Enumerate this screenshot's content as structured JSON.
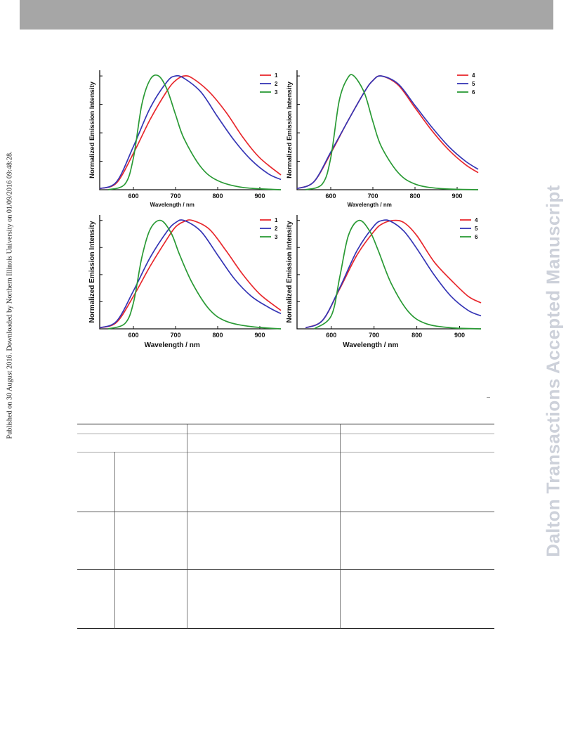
{
  "side_text": "Published on 30 August 2016. Downloaded by Northern Illinois University on 01/09/2016 09:48:28.",
  "watermark": "Dalton Transactions Accepted Manuscript",
  "chart_data": [
    {
      "type": "line",
      "ylabel": "Normalized Emission Intensity",
      "xlabel": "Wavelength / nm",
      "x_ticks": [
        600,
        700,
        800,
        900
      ],
      "xlim": [
        520,
        950
      ],
      "ylim": [
        0,
        1.05
      ],
      "legend_position": "top-right",
      "series": [
        {
          "name": "1",
          "color": "#e8282d",
          "x": [
            520,
            560,
            600,
            640,
            680,
            700,
            720,
            740,
            780,
            820,
            860,
            900,
            950
          ],
          "y": [
            0.01,
            0.06,
            0.32,
            0.62,
            0.87,
            0.96,
            1.0,
            0.98,
            0.86,
            0.68,
            0.46,
            0.28,
            0.13
          ]
        },
        {
          "name": "2",
          "color": "#3535b5",
          "x": [
            520,
            560,
            600,
            640,
            680,
            700,
            720,
            760,
            800,
            840,
            880,
            920,
            950
          ],
          "y": [
            0.01,
            0.07,
            0.38,
            0.72,
            0.95,
            1.0,
            0.98,
            0.86,
            0.64,
            0.43,
            0.26,
            0.14,
            0.09
          ]
        },
        {
          "name": "3",
          "color": "#2a9a35",
          "x": [
            540,
            580,
            600,
            620,
            640,
            660,
            680,
            700,
            720,
            760,
            800,
            860,
            950
          ],
          "y": [
            0.0,
            0.05,
            0.28,
            0.75,
            0.97,
            1.0,
            0.88,
            0.66,
            0.45,
            0.2,
            0.08,
            0.02,
            0.0
          ]
        }
      ]
    },
    {
      "type": "line",
      "ylabel": "Normalized Emission Intensity",
      "xlabel": "Wavelength / nm",
      "x_ticks": [
        600,
        700,
        800,
        900
      ],
      "xlim": [
        520,
        950
      ],
      "ylim": [
        0,
        1.05
      ],
      "legend_position": "top-right",
      "series": [
        {
          "name": "4",
          "color": "#e8282d",
          "x": [
            520,
            560,
            600,
            640,
            680,
            700,
            720,
            760,
            800,
            840,
            880,
            920,
            950
          ],
          "y": [
            0.01,
            0.07,
            0.32,
            0.6,
            0.86,
            0.96,
            1.0,
            0.92,
            0.72,
            0.52,
            0.35,
            0.22,
            0.15
          ]
        },
        {
          "name": "5",
          "color": "#3535b5",
          "x": [
            520,
            560,
            600,
            640,
            680,
            700,
            720,
            760,
            800,
            840,
            880,
            920,
            950
          ],
          "y": [
            0.01,
            0.07,
            0.33,
            0.6,
            0.86,
            0.96,
            1.0,
            0.93,
            0.74,
            0.55,
            0.38,
            0.25,
            0.18
          ]
        },
        {
          "name": "6",
          "color": "#2a9a35",
          "x": [
            540,
            580,
            600,
            620,
            640,
            655,
            680,
            700,
            720,
            760,
            800,
            860,
            950
          ],
          "y": [
            0.0,
            0.05,
            0.28,
            0.78,
            0.98,
            1.0,
            0.85,
            0.6,
            0.38,
            0.15,
            0.05,
            0.01,
            0.0
          ]
        }
      ]
    },
    {
      "type": "line",
      "ylabel": "Normalized Emission Intensity",
      "xlabel": "Wavelength / nm",
      "x_ticks": [
        600,
        700,
        800,
        900
      ],
      "xlim": [
        520,
        950
      ],
      "ylim": [
        0,
        1.05
      ],
      "legend_position": "top-right",
      "series": [
        {
          "name": "1",
          "color": "#e8282d",
          "x": [
            520,
            560,
            600,
            640,
            680,
            700,
            720,
            740,
            780,
            820,
            860,
            900,
            950
          ],
          "y": [
            0.01,
            0.06,
            0.3,
            0.58,
            0.83,
            0.94,
            0.99,
            1.0,
            0.92,
            0.72,
            0.5,
            0.32,
            0.17
          ]
        },
        {
          "name": "2",
          "color": "#3535b5",
          "x": [
            520,
            560,
            600,
            640,
            680,
            700,
            720,
            760,
            800,
            840,
            880,
            920,
            950
          ],
          "y": [
            0.01,
            0.07,
            0.35,
            0.66,
            0.9,
            0.98,
            1.0,
            0.9,
            0.68,
            0.46,
            0.3,
            0.2,
            0.14
          ]
        },
        {
          "name": "3",
          "color": "#2a9a35",
          "x": [
            540,
            580,
            600,
            620,
            640,
            665,
            690,
            710,
            740,
            780,
            820,
            880,
            950
          ],
          "y": [
            0.0,
            0.05,
            0.24,
            0.66,
            0.92,
            1.0,
            0.88,
            0.68,
            0.42,
            0.18,
            0.07,
            0.02,
            0.0
          ]
        }
      ]
    },
    {
      "type": "line",
      "ylabel": "Normalized Emission Intensity",
      "xlabel": "Wavelength / nm",
      "x_ticks": [
        600,
        700,
        800,
        900
      ],
      "xlim": [
        520,
        950
      ],
      "ylim": [
        0,
        1.05
      ],
      "legend_position": "top-right",
      "series": [
        {
          "name": "4",
          "color": "#e8282d",
          "x": [
            540,
            580,
            620,
            660,
            700,
            720,
            745,
            770,
            800,
            840,
            880,
            920,
            950
          ],
          "y": [
            0.01,
            0.08,
            0.37,
            0.68,
            0.9,
            0.97,
            1.0,
            0.98,
            0.86,
            0.62,
            0.45,
            0.3,
            0.24
          ]
        },
        {
          "name": "5",
          "color": "#3535b5",
          "x": [
            540,
            580,
            620,
            660,
            700,
            720,
            740,
            770,
            800,
            840,
            880,
            920,
            950
          ],
          "y": [
            0.01,
            0.08,
            0.38,
            0.72,
            0.95,
            1.0,
            0.99,
            0.9,
            0.74,
            0.5,
            0.3,
            0.17,
            0.12
          ]
        },
        {
          "name": "6",
          "color": "#2a9a35",
          "x": [
            560,
            600,
            620,
            640,
            665,
            690,
            710,
            740,
            780,
            820,
            880,
            950
          ],
          "y": [
            0.0,
            0.12,
            0.48,
            0.86,
            1.0,
            0.9,
            0.72,
            0.42,
            0.16,
            0.05,
            0.01,
            0.0
          ]
        }
      ]
    }
  ],
  "table": {
    "rows": 9,
    "cols": 5
  }
}
